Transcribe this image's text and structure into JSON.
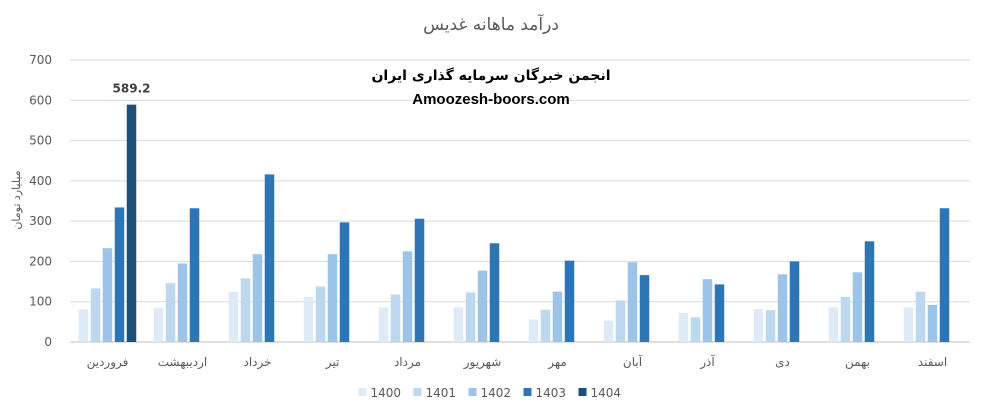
{
  "chart_data": {
    "type": "bar",
    "title": "درآمد ماهانه غدیس",
    "ylabel": "میلیارد تومان",
    "xlabel": "",
    "ylim": [
      0,
      700
    ],
    "yticks": [
      0,
      100,
      200,
      300,
      400,
      500,
      600,
      700
    ],
    "grid": true,
    "legend_position": "bottom",
    "categories": [
      "فروردین",
      "اردیبهشت",
      "خرداد",
      "تیر",
      "مرداد",
      "شهریور",
      "مهر",
      "آبان",
      "آذر",
      "دی",
      "بهمن",
      "اسفند"
    ],
    "series": [
      {
        "name": "1400",
        "color": "#deebf7",
        "values": [
          81,
          84,
          125,
          112,
          86,
          86,
          56,
          53,
          72,
          82,
          86,
          86
        ]
      },
      {
        "name": "1401",
        "color": "#bdd7ee",
        "values": [
          133,
          146,
          158,
          138,
          118,
          123,
          80,
          103,
          61,
          79,
          112,
          125
        ]
      },
      {
        "name": "1402",
        "color": "#9dc3e6",
        "values": [
          233,
          195,
          218,
          218,
          225,
          177,
          125,
          198,
          156,
          168,
          173,
          92
        ]
      },
      {
        "name": "1403",
        "color": "#2e75b6",
        "values": [
          334,
          332,
          416,
          297,
          306,
          245,
          202,
          166,
          143,
          200,
          250,
          332
        ]
      },
      {
        "name": "1404",
        "color": "#1f4e79",
        "values": [
          589.2,
          null,
          null,
          null,
          null,
          null,
          null,
          null,
          null,
          null,
          null,
          null
        ]
      }
    ],
    "data_labels": [
      {
        "series": "1404",
        "category": "فروردین",
        "text": "589.2"
      }
    ]
  },
  "watermark": {
    "line1": "انجمن خبرگان سرمایه گذاری ایران",
    "line2": "Amoozesh-boors.com"
  }
}
